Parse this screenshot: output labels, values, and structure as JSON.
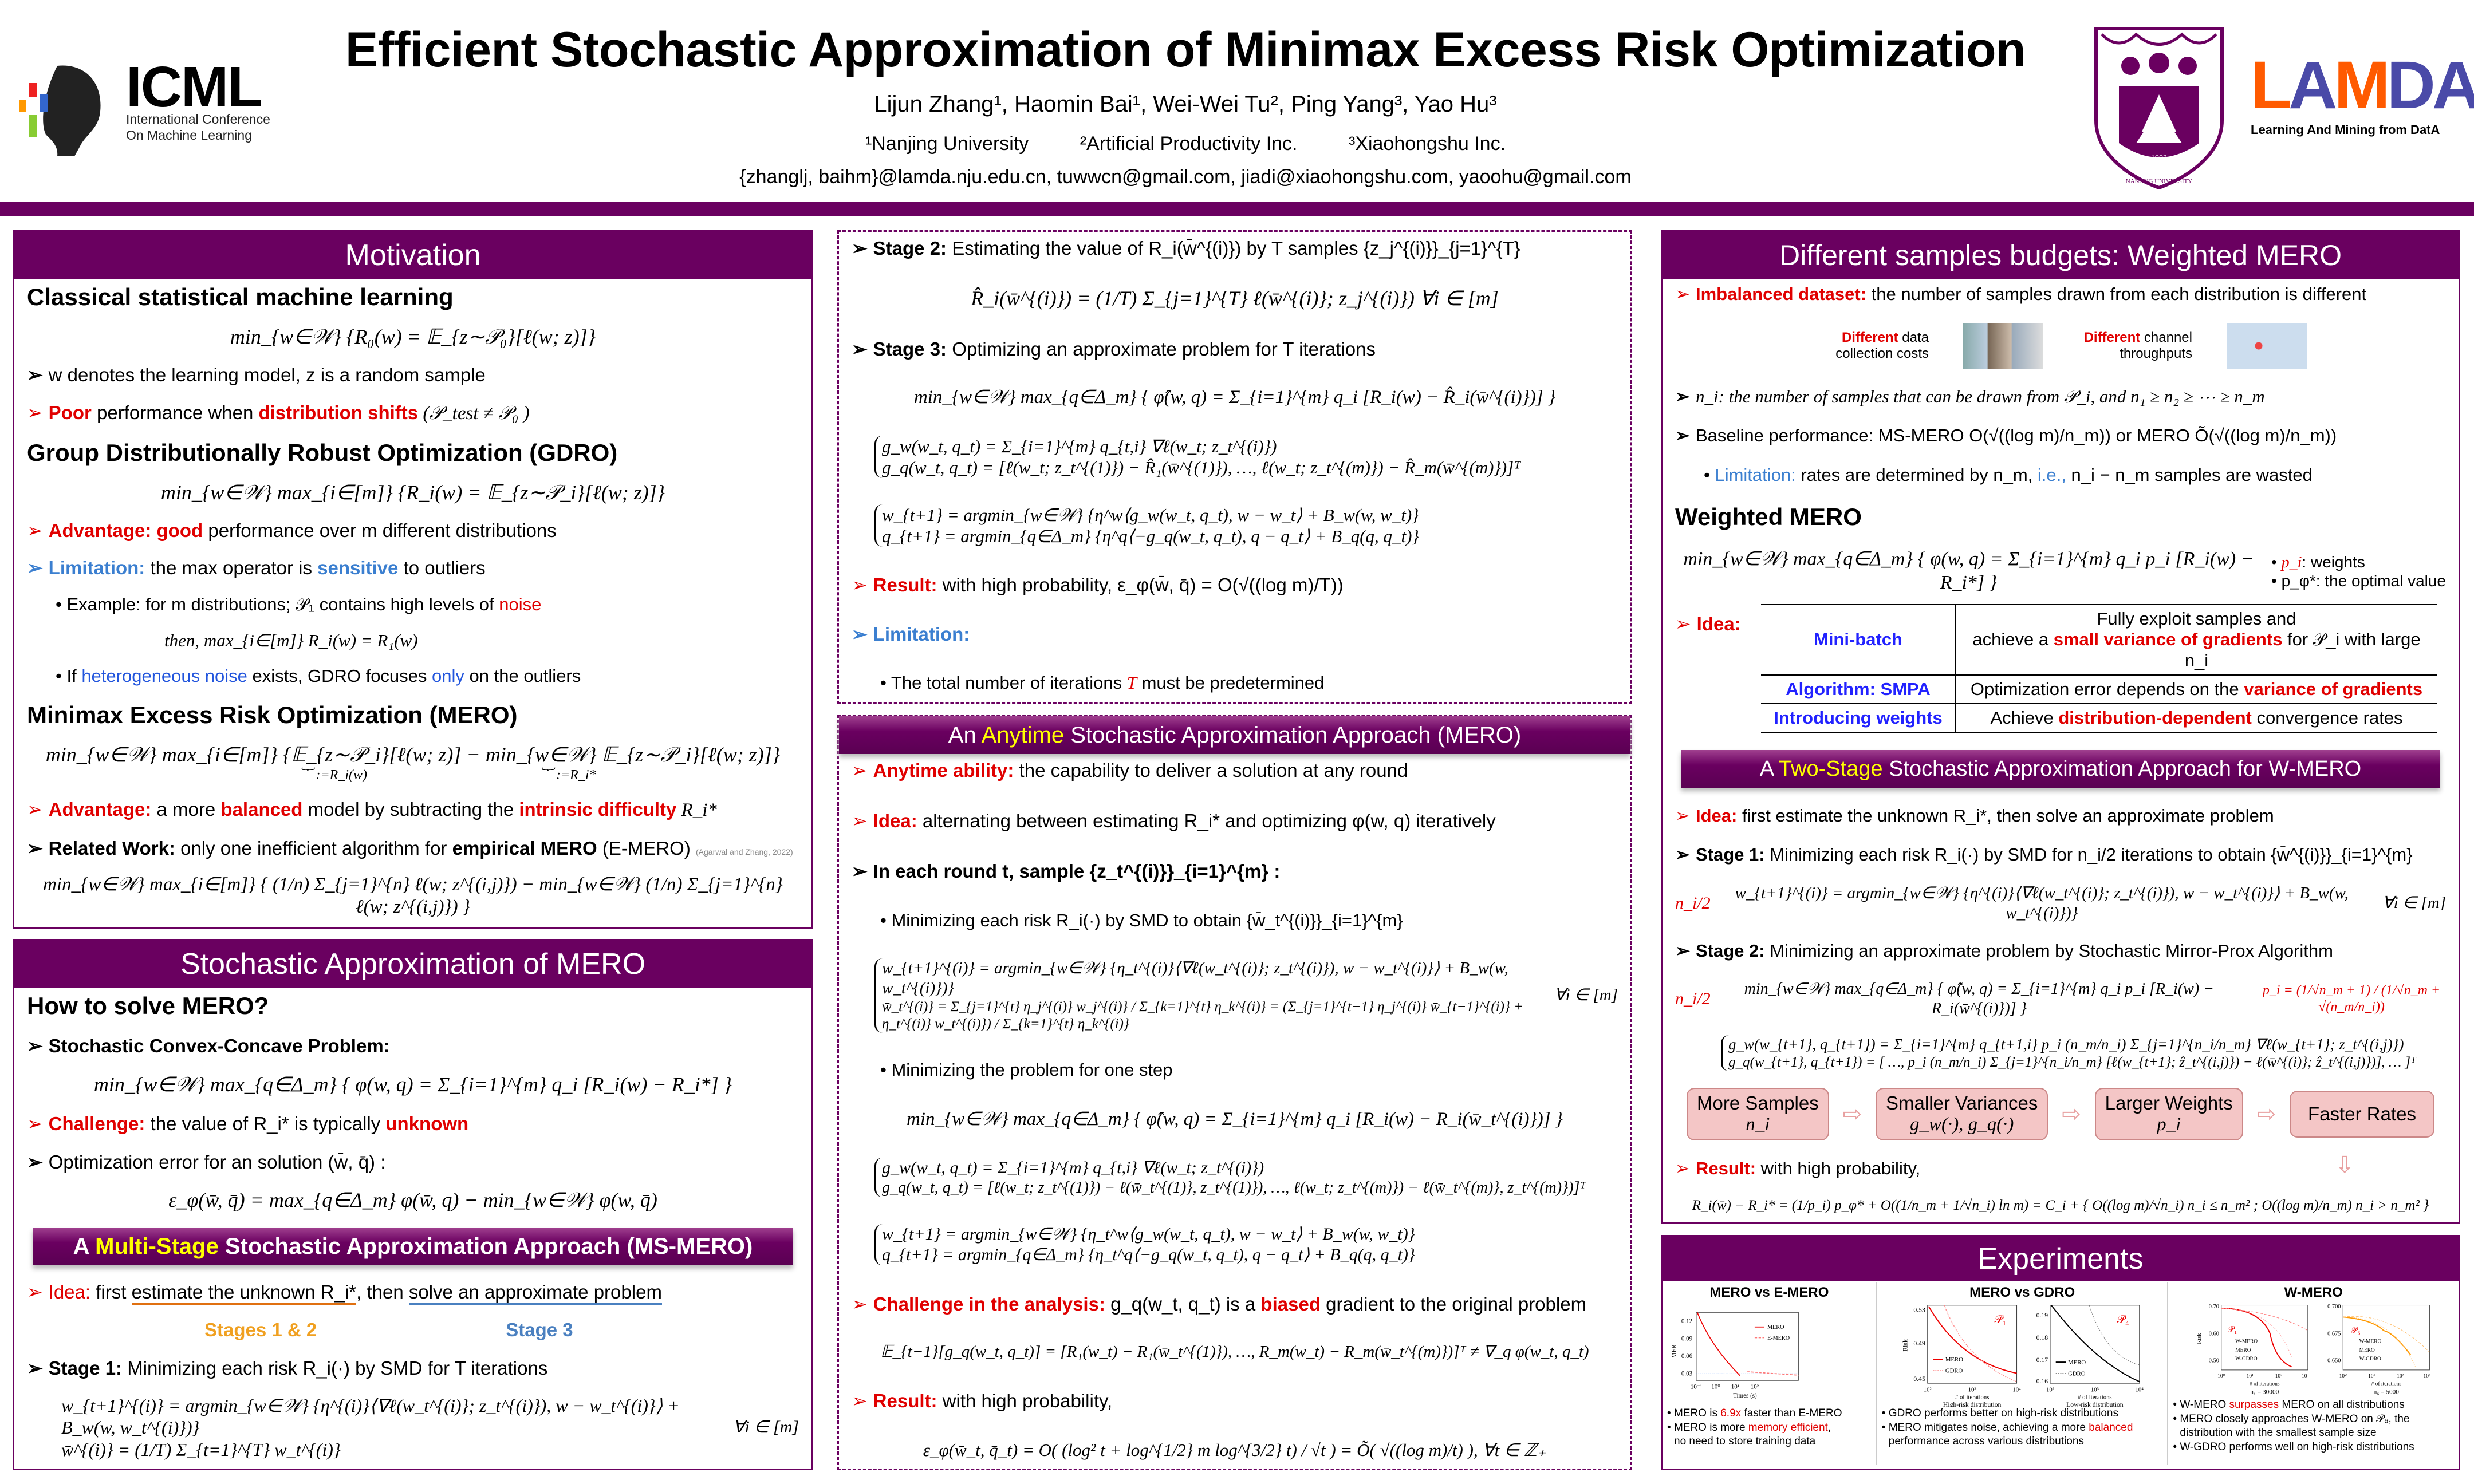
{
  "header": {
    "title": "Efficient Stochastic Approximation of Minimax Excess Risk Optimization",
    "authors": "Lijun Zhang¹,  Haomin Bai¹,  Wei-Wei Tu²,  Ping Yang³,  Yao Hu³",
    "affiliations": [
      "¹Nanjing University",
      "²Artificial Productivity Inc.",
      "³Xiaohongshu Inc."
    ],
    "emails": "{zhanglj, baihm}@lamda.nju.edu.cn, tuwwcn@gmail.com, jiadi@xiaohongshu.com, yaoohu@gmail.com",
    "icml": {
      "word": "ICML",
      "line1": "International Conference",
      "line2": "On Machine Learning"
    },
    "seal": {
      "text": "NANJING UNIVERSITY",
      "year": "1902"
    },
    "lamda": {
      "l": "L",
      "a": "A",
      "m": "M",
      "d": "DA",
      "sub": "Learning And Mining from DatA"
    },
    "colors": {
      "purple": "#6a0060",
      "red": "#e00000",
      "blue": "#2222ff"
    }
  },
  "motivation": {
    "title": "Motivation",
    "s1": "Classical statistical machine learning",
    "f1": "min_{w∈𝒲} {R₀(w) = 𝔼_{z∼𝒫₀}[ℓ(w; z)]}",
    "b1": [
      "w denotes the learning model, z is a random sample"
    ],
    "b2": [
      "Poor",
      " performance when ",
      "distribution shifts",
      "  (𝒫_test ≠ 𝒫₀ )"
    ],
    "s2": "Group Distributionally Robust Optimization (GDRO)",
    "f2": "min_{w∈𝒲} max_{i∈[m]} {R_i(w) = 𝔼_{z∼𝒫_i}[ℓ(w; z)]}",
    "b3": [
      "Advantage:",
      " good",
      " performance over m different distributions"
    ],
    "b4": [
      "Limitation:",
      " the max operator is ",
      "sensitive",
      " to outliers"
    ],
    "b4a": [
      "Example: for m distributions; 𝒫₁ contains high levels of ",
      "noise"
    ],
    "b4b": "then,          max_{i∈[m]} R_i(w) = R₁(w)",
    "b4c": [
      "If ",
      "heterogeneous noise",
      " exists, GDRO focuses ",
      "only",
      " on the outliers"
    ],
    "s3": "Minimax Excess Risk Optimization (MERO)",
    "f3": "min_{w∈𝒲} max_{i∈[m]} {𝔼_{z∼𝒫_i}[ℓ(w; z)] − min_{w∈𝒲} 𝔼_{z∼𝒫_i}[ℓ(w; z)]}",
    "f3u": [
      "︸ :=R_i(w)",
      "︸ :=R_i*"
    ],
    "b5": [
      "Advantage:",
      " a more ",
      "balanced",
      " model by subtracting the ",
      "intrinsic difficulty",
      " R_i*"
    ],
    "b6": [
      "Related Work:",
      " only one inefficient algorithm for ",
      "empirical MERO",
      " (E-MERO)",
      "(Agarwal and Zhang, 2022)"
    ],
    "f4": "min_{w∈𝒲} max_{i∈[m]} { (1/n) Σ_{j=1}^{n} ℓ(w; z^{(i,j)}) − min_{w∈𝒲} (1/n) Σ_{j=1}^{n} ℓ(w; z^{(i,j)}) }"
  },
  "stoch": {
    "title": "Stochastic Approximation of MERO",
    "s1": "How to solve MERO?",
    "b1": "Stochastic Convex-Concave Problem:",
    "f1": "min_{w∈𝒲} max_{q∈Δ_m} { φ(w, q) = Σ_{i=1}^{m} q_i [R_i(w) − R_i*] }",
    "b2": [
      "Challenge:",
      " the value of R_i* is typically ",
      "unknown"
    ],
    "b3": "Optimization error for an solution (w̄, q̄) :",
    "f2": "ε_φ(w̄, q̄) = max_{q∈Δ_m} φ(w̄, q) − min_{w∈𝒲} φ(w, q̄)",
    "ms_title": [
      "A ",
      "Multi-Stage",
      " Stochastic Approximation Approach (MS-MERO)"
    ],
    "idea": [
      "Idea:",
      " first ",
      "estimate the unknown R_i*",
      ", then ",
      "solve an approximate problem"
    ],
    "stages12": "Stages 1 & 2",
    "stage3": "Stage 3",
    "st1": [
      "Stage 1:",
      " Minimizing each risk R_i(·) by SMD for T iterations"
    ],
    "f3": "w_{t+1}^{(i)} = argmin_{w∈𝒲} {η^{(i)}⟨∇ℓ(w_t^{(i)}; z_t^{(i)}), w − w_t^{(i)}⟩ + B_w(w, w_t^{(i)})}",
    "f4": "w̄^{(i)} = (1/T) Σ_{t=1}^{T} w_t^{(i)}",
    "forall": "∀i ∈ [m]"
  },
  "ms2": {
    "st2": [
      "Stage 2:",
      " Estimating the value of R_i(w̄^{(i)}) by T samples {z_j^{(i)}}_{j=1}^{T}"
    ],
    "f1": "R̂_i(w̄^{(i)}) = (1/T) Σ_{j=1}^{T} ℓ(w̄^{(i)}; z_j^{(i)})        ∀i ∈ [m]",
    "st3": [
      "Stage 3:",
      " Optimizing an approximate problem for T iterations"
    ],
    "f2": "min_{w∈𝒲} max_{q∈Δ_m} { φ̂(w, q) = Σ_{i=1}^{m} q_i [R_i(w) − R̂_i(w̄^{(i)})] }",
    "f3": "g_w(w_t, q_t) = Σ_{i=1}^{m} q_{t,i} ∇ℓ(w_t; z_t^{(i)})",
    "f4": "g_q(w_t, q_t) = [ℓ(w_t; z_t^{(1)}) − R̂₁(w̄^{(1)}), …, ℓ(w_t; z_t^{(m)}) − R̂_m(w̄^{(m)})]ᵀ",
    "f5": "w_{t+1} = argmin_{w∈𝒲} {η^w⟨g_w(w_t, q_t), w − w_t⟩ + B_w(w, w_t)}",
    "f6": "q_{t+1} = argmin_{q∈Δ_m} {η^q⟨−g_q(w_t, q_t), q − q_t⟩ + B_q(q, q_t)}",
    "res": [
      "Result:",
      " with high probability,   ε_φ(w̄, q̄) = O(√((log m)/T))"
    ],
    "lim": "Limitation:",
    "lim1": [
      "The total number of iterations ",
      "T",
      " must be predetermined"
    ]
  },
  "anytime": {
    "title": [
      "An ",
      "Anytime",
      " Stochastic Approximation Approach (MERO)"
    ],
    "b1": [
      "Anytime ability:",
      " the capability to deliver a solution at any round"
    ],
    "b2": [
      "Idea:",
      " alternating between estimating R_i* and optimizing φ(w, q) iteratively"
    ],
    "b3": "In each round t, sample {z_t^{(i)}}_{i=1}^{m} :",
    "s1": "Minimizing each risk R_i(·) by SMD to obtain {w̄_t^{(i)}}_{i=1}^{m}",
    "f1": "w_{t+1}^{(i)} = argmin_{w∈𝒲} {η_t^{(i)}⟨∇ℓ(w_t^{(i)}; z_t^{(i)}), w − w_t^{(i)}⟩ + B_w(w, w_t^{(i)})}",
    "f2": "w̄_t^{(i)} = Σ_{j=1}^{t} η_j^{(i)} w_j^{(i)} / Σ_{k=1}^{t} η_k^{(i)} = (Σ_{j=1}^{t−1} η_j^{(i)} w̄_{t−1}^{(i)} + η_t^{(i)} w_t^{(i)}) / Σ_{k=1}^{t} η_k^{(i)}",
    "forall": "∀i ∈ [m]",
    "s2": "Minimizing the problem for one step",
    "f3": "min_{w∈𝒲} max_{q∈Δ_m} { φ̂(w, q) = Σ_{i=1}^{m} q_i [R_i(w) − R_i(w̄_t^{(i)})] }",
    "f4": "g_w(w_t, q_t) = Σ_{i=1}^{m} q_{t,i} ∇ℓ(w_t; z_t^{(i)})",
    "f5": "g_q(w_t, q_t) = [ℓ(w_t; z_t^{(1)}) − ℓ(w̄_t^{(1)}, z_t^{(1)}), …, ℓ(w_t; z_t^{(m)}) − ℓ(w̄_t^{(m)}, z_t^{(m)})]ᵀ",
    "f6": "w_{t+1} = argmin_{w∈𝒲} {η_t^w⟨g_w(w_t, q_t), w − w_t⟩ + B_w(w, w_t)}",
    "f7": "q_{t+1} = argmin_{q∈Δ_m} {η_t^q⟨−g_q(w_t, q_t), q − q_t⟩ + B_q(q, q_t)}",
    "ch": [
      "Challenge in the analysis:",
      " g_q(w_t, q_t) is a ",
      "biased",
      " gradient to the original problem"
    ],
    "f8": "𝔼_{t−1}[g_q(w_t, q_t)] = [R₁(w_t) − R₁(w̄_t^{(1)}), …, R_m(w_t) − R_m(w̄_t^{(m)})]ᵀ ≠ ∇_q φ(w_t, q_t)",
    "res": [
      "Result:",
      " with high probability,"
    ],
    "f9": "ε_φ(w̄_t, q̄_t) = O( (log² t + log^{1/2} m log^{3/2} t) / √t ) = Õ( √((log m)/t) ),   ∀t ∈ ℤ₊"
  },
  "wmero": {
    "title": "Different samples budgets: Weighted MERO",
    "b1": [
      "Imbalanced dataset:",
      " the number of samples drawn from each distribution is different"
    ],
    "img1": [
      "Different",
      " data collection costs"
    ],
    "img2": [
      "Different",
      " channel throughputs"
    ],
    "b2": "n_i: the number of samples that can be drawn from 𝒫_i, and n₁ ≥ n₂ ≥ ⋯ ≥ n_m",
    "b3": "Baseline performance: MS-MERO O(√((log m)/n_m)) or MERO Õ(√((log m)/n_m))",
    "b4": [
      "Limitation:",
      " rates are determined by n_m, ",
      "i.e.,",
      " n_i − n_m samples are wasted"
    ],
    "s1": "Weighted MERO",
    "f1": "min_{w∈𝒲} max_{q∈Δ_m} { φ(w, q) = Σ_{i=1}^{m} q_i p_i [R_i(w) − R_i*] }",
    "n1": [
      "p_i",
      ": weights"
    ],
    "n2": "p_φ*: the optimal value",
    "idea": "Idea:",
    "table": [
      {
        "k": "Mini-batch",
        "v": [
          "Fully exploit samples and",
          "achieve a ",
          "small variance of gradients",
          " for 𝒫_i with large n_i"
        ]
      },
      {
        "k": "Algorithm: SMPA",
        "v": [
          "Optimization error depends on the ",
          "variance of gradients"
        ]
      },
      {
        "k": "Introducing weights",
        "v": [
          "Achieve ",
          "distribution-dependent",
          " convergence rates"
        ]
      }
    ],
    "ts_title": [
      "A ",
      "Two-Stage",
      " Stochastic Approximation Approach for W-MERO"
    ],
    "ideab": [
      "Idea:",
      " first estimate the unknown R_i*, then solve an approximate problem"
    ],
    "st1": [
      "Stage 1:",
      " Minimizing each risk R_i(·) by SMD for n_i/2 iterations to obtain {w̄^{(i)}}_{i=1}^{m}"
    ],
    "ni2": "n_i/2",
    "f2": "w_{t+1}^{(i)} = argmin_{w∈𝒲} {η^{(i)}⟨∇ℓ(w_t^{(i)}; z_t^{(i)}), w − w_t^{(i)}⟩ + B_w(w, w_t^{(i)})}",
    "forall": "∀i ∈ [m]",
    "st2": [
      "Stage 2:",
      " Minimizing an approximate problem by Stochastic Mirror-Prox Algorithm"
    ],
    "f3": "min_{w∈𝒲} max_{q∈Δ_m} { φ̂(w, q) = Σ_{i=1}^{m} q_i p_i [R_i(w) − R_i(w̄^{(i)})] }",
    "pi": "p_i = (1/√n_m + 1) / (1/√n_m + √(n_m/n_i))",
    "f4": "g_w(w_{t+1}, q_{t+1}) = Σ_{i=1}^{m} q_{t+1,i} p_i (n_m/n_i) Σ_{j=1}^{n_i/n_m} ∇ℓ(w_{t+1}; z_t^{(i,j)})",
    "f5": "g_q(w_{t+1}, q_{t+1}) = [ …, p_i (n_m/n_i) Σ_{j=1}^{n_i/n_m} [ℓ(w_{t+1}; ẑ_t^{(i,j)}) − ℓ(w̄^{(i)}; ẑ_t^{(i,j)})], … ]ᵀ",
    "flow": [
      {
        "a": "More Samples",
        "b": "n_i"
      },
      {
        "a": "Smaller Variances",
        "b": "g_w(·), g_q(·)"
      },
      {
        "a": "Larger Weights",
        "b": "p_i"
      },
      {
        "a": "Faster Rates",
        "b": ""
      }
    ],
    "res": [
      "Result:",
      " with high probability,"
    ],
    "f6": "R_i(w̄) − R_i* = (1/p_i) p_φ* + O((1/n_m + 1/√n_i) ln m) = C_i + { O((log m)/√n_i)  n_i ≤ n_m² ;  O((log m)/n_m)  n_i > n_m² }"
  },
  "experiments": {
    "title": "Experiments",
    "c1": {
      "title": "MERO vs E-MERO",
      "ylabel": "MER",
      "xlabel": "Times (s)",
      "yticks": [
        "0.12",
        "0.09",
        "0.06",
        "0.03"
      ],
      "xticks": [
        "10⁻¹",
        "10⁰",
        "10¹",
        "10²"
      ],
      "legend": [
        "MERO",
        "E-MERO"
      ],
      "caps": [
        [
          "MERO is ",
          "6.9x",
          " faster than E-MERO"
        ],
        [
          "MERO is more ",
          "memory efficient",
          ","
        ],
        "no need to store training data"
      ]
    },
    "c2": {
      "title": "MERO vs GDRO",
      "p1": {
        "label": "𝒫₁",
        "yticks": [
          "0.53",
          "0.49",
          "0.45"
        ],
        "sub": "High-risk distribution"
      },
      "p4": {
        "label": "𝒫₄",
        "yticks": [
          "0.19",
          "0.18",
          "0.17",
          "0.16"
        ],
        "sub": "Low-risk distribution"
      },
      "ylabel": "Risk",
      "xlabel": "# of iterations",
      "xticks": [
        "10²",
        "10³",
        "10⁴"
      ],
      "legend": [
        "MERO",
        "GDRO"
      ],
      "caps": [
        "GDRO performs better on high-risk distributions",
        [
          "MERO mitigates noise, achieving a more ",
          "balanced"
        ],
        "performance across various distributions"
      ]
    },
    "c3": {
      "title": "W-MERO",
      "p1": {
        "label": "𝒫₁",
        "yticks": [
          "0.70",
          "0.60",
          "0.50"
        ],
        "n": "n₁ = 30000"
      },
      "p6": {
        "label": "𝒫₆",
        "yticks": [
          "0.700",
          "0.675",
          "0.650"
        ],
        "n": "n₆ = 5000"
      },
      "ylabel": "Risk",
      "xlabel": "# of iterations",
      "xticks": [
        "10⁰",
        "10¹",
        "10²",
        "10³"
      ],
      "legend": [
        "W-MERO",
        "MERO",
        "W-GDRO"
      ],
      "caps": [
        [
          "W-MERO ",
          "surpasses",
          " MERO on all distributions"
        ],
        "MERO closely approaches W-MERO on 𝒫₆, the",
        "distribution with the smallest sample size",
        "W-GDRO performs well on high-risk distributions"
      ]
    }
  }
}
